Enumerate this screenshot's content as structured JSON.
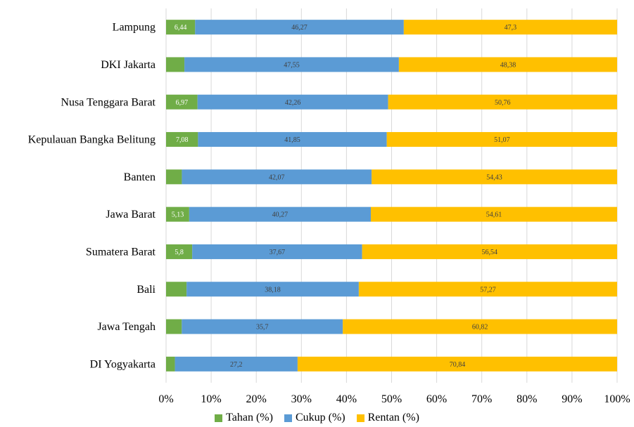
{
  "chart_data": {
    "type": "bar",
    "orientation": "horizontal",
    "stacked": "percent",
    "categories": [
      "Lampung",
      "DKI Jakarta",
      "Nusa Tenggara Barat",
      "Kepulauan Bangka Belitung",
      "Banten",
      "Jawa Barat",
      "Sumatera Barat",
      "Bali",
      "Jawa Tengah",
      "DI Yogyakarta"
    ],
    "series": [
      {
        "name": "Tahan (%)",
        "color": "#70AD47",
        "values": [
          6.44,
          4.07,
          6.97,
          7.08,
          3.5,
          5.13,
          5.8,
          4.55,
          3.48,
          1.96
        ],
        "labels": [
          "6,44",
          "",
          "6,97",
          "7,08",
          "",
          "5,13",
          "5,8",
          "",
          "",
          ""
        ]
      },
      {
        "name": "Cukup (%)",
        "color": "#5B9BD5",
        "values": [
          46.27,
          47.55,
          42.26,
          41.85,
          42.07,
          40.27,
          37.67,
          38.18,
          35.7,
          27.2
        ],
        "labels": [
          "46,27",
          "47,55",
          "42,26",
          "41,85",
          "42,07",
          "40,27",
          "37,67",
          "38,18",
          "35,7",
          "27,2"
        ]
      },
      {
        "name": "Rentan (%)",
        "color": "#FFC000",
        "values": [
          47.3,
          48.38,
          50.76,
          51.07,
          54.43,
          54.61,
          56.54,
          57.27,
          60.82,
          70.84
        ],
        "labels": [
          "47,3",
          "48,38",
          "50,76",
          "51,07",
          "54,43",
          "54,61",
          "56,54",
          "57,27",
          "60,82",
          "70,84"
        ]
      }
    ],
    "xticks": [
      "0%",
      "10%",
      "20%",
      "30%",
      "40%",
      "50%",
      "60%",
      "70%",
      "80%",
      "90%",
      "100%"
    ],
    "xlim": [
      0,
      100
    ],
    "grid": true,
    "legend_position": "bottom",
    "title": "",
    "xlabel": "",
    "ylabel": ""
  }
}
